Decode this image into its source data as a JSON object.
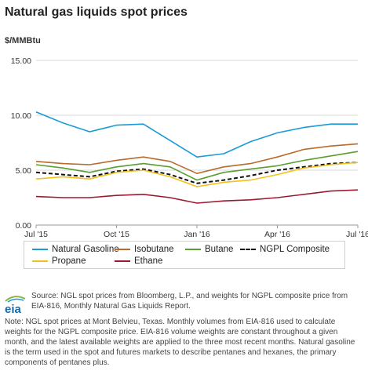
{
  "title": "Natural gas liquids spot prices",
  "units_label": "$/MMBtu",
  "source_text": "Source: NGL spot prices from Bloomberg, L.P., and weights for NGPL composite price from EIA-816, Monthly Natural Gas Liquids Report.",
  "note_text": "Note: NGL spot prices at Mont Belvieu, Texas. Monthly volumes from EIA-816 used to calculate weights for the NGPL composite price. EIA-816 volume weights are constant throughout a given month, and the latest available weights are applied to the three most recent months. Natural gasoline is the term used in the spot and futures markets to describe pentanes and hexanes, the primary components of pentanes plus.",
  "logo_text": "eia",
  "chart_data": {
    "type": "line",
    "title": "Natural gas liquids spot prices",
    "ylabel": "$/MMBtu",
    "ylim": [
      0,
      15
    ],
    "y_ticks": [
      "0.00",
      "5.00",
      "10.00",
      "15.00"
    ],
    "x_tick_labels": [
      "Jul '15",
      "Oct '15",
      "Jan '16",
      "Apr '16",
      "Jul '16"
    ],
    "x": [
      "2015-07",
      "2015-08",
      "2015-09",
      "2015-10",
      "2015-11",
      "2015-12",
      "2016-01",
      "2016-02",
      "2016-03",
      "2016-04",
      "2016-05",
      "2016-06",
      "2016-07"
    ],
    "grid": true,
    "legend_position": "bottom",
    "series": [
      {
        "name": "Natural Gasoline",
        "color": "#1a9bd7",
        "dash": "solid",
        "values": [
          10.3,
          9.3,
          8.5,
          9.1,
          9.2,
          7.7,
          6.2,
          6.5,
          7.6,
          8.4,
          8.9,
          9.2,
          9.2
        ]
      },
      {
        "name": "Isobutane",
        "color": "#b86b2c",
        "dash": "solid",
        "values": [
          5.8,
          5.6,
          5.5,
          5.9,
          6.2,
          5.8,
          4.7,
          5.3,
          5.6,
          6.2,
          6.9,
          7.2,
          7.4
        ]
      },
      {
        "name": "Butane",
        "color": "#5a9e32",
        "dash": "solid",
        "values": [
          5.5,
          5.2,
          4.8,
          5.3,
          5.6,
          5.3,
          4.1,
          4.8,
          5.1,
          5.4,
          5.9,
          6.3,
          6.7
        ]
      },
      {
        "name": "NGPL Composite",
        "color": "#111111",
        "dash": "dashed",
        "values": [
          4.8,
          4.6,
          4.4,
          4.9,
          5.1,
          4.6,
          3.8,
          4.1,
          4.5,
          5.0,
          5.3,
          5.6,
          5.7
        ]
      },
      {
        "name": "Propane",
        "color": "#f2c11a",
        "dash": "solid",
        "values": [
          4.2,
          4.4,
          4.2,
          4.8,
          5.0,
          4.4,
          3.5,
          3.9,
          4.1,
          4.6,
          5.2,
          5.5,
          5.7
        ]
      },
      {
        "name": "Ethane",
        "color": "#9b1b30",
        "dash": "solid",
        "values": [
          2.6,
          2.5,
          2.5,
          2.7,
          2.8,
          2.5,
          2.0,
          2.2,
          2.3,
          2.5,
          2.8,
          3.1,
          3.2
        ]
      }
    ]
  }
}
